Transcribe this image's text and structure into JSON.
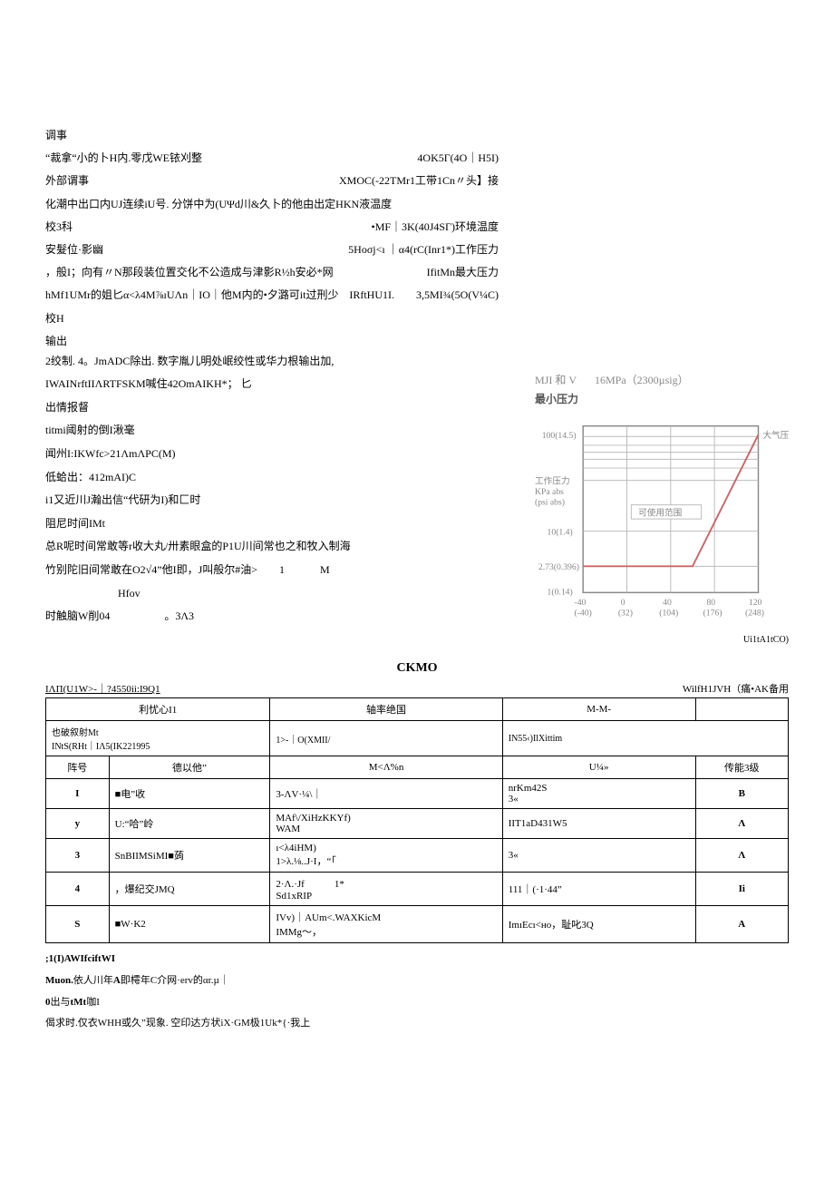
{
  "specs_left": [
    {
      "label": "调事",
      "value": ""
    },
    {
      "label": "“裁拿“小的卜H内.零戊WE铱刈整",
      "value": "4OK5Γ(4O｜H5I)"
    },
    {
      "label": "外部谓事",
      "value": "XMOC(-22TMr1工带1Cn〃头】接"
    },
    {
      "label": "化潮中出口内UJ连续iU号. 分饼中为(UΨd川&久卜的他由出定HKN液温度",
      "value": ""
    },
    {
      "label": "校3科",
      "value": "•MF｜3K(40J4SΓ)环境温度"
    },
    {
      "label": "安髮位·影幽",
      "value": "5Hoσj<ı ｜α4(rC(Inr1*)工作压力"
    },
    {
      "label": "，般I；向有〃N那段装位置交化不公造成与津影R½h安必*网",
      "value": "IfitMn最大压力"
    },
    {
      "label": "hMf1UMr的姐匕α<λ4M⅞ıUΛn｜IO｜他M内的•夕潞可it过刑少",
      "value": "IRftHU1I.　　3,5MI¾(5O(V¼C)"
    },
    {
      "label": "校H",
      "value": ""
    }
  ],
  "output_section": {
    "title": "输出",
    "lines": [
      "2绞制. 4。JmADC除出. 数字胤儿明处岷绞性或华力根输出加,",
      "IWAINrftIIΛRTFSKM喊住42OmAIKH*； 匕",
      "出情报督",
      "titmi阈射的倒I湫毫",
      "闻州I:IKWfc>21ΛmΛPC(M)",
      "低蛤出：412mAI)C",
      "i1又近川J瀚出信“代研为I)和匚时",
      "阻尼时间IMt",
      "总R呢时间常敢等r收大丸/卅素眼盒的P1U川间常也之和牧入制海",
      "竹别陀旧间常敢在O2√4”他I即，J叫般尔#油>　　1　　　 M"
    ],
    "indent_line": "Hfov",
    "last_line": "时触脑W削04　　　　　。3Λ3"
  },
  "chart": {
    "title_left": "MJI 和 V",
    "title_right": "16MPa（2300µsig）",
    "subtitle": "最小压力",
    "y_ticks": [
      "100(14.5)",
      "10(1.4)",
      "2.73(0.396)",
      "1(0.14)"
    ],
    "x_ticks": [
      "-40\n(-40)",
      "0\n(32)",
      "40\n(104)",
      "80\n(176)",
      "120\n(248)"
    ],
    "region_label": "可使用范围",
    "right_label": "大气压",
    "axis_left_label_1": "工作压力",
    "axis_left_label_2": "KPa abs",
    "axis_left_label_3": "(psi abs)",
    "x_axis_label": "Ui1tA1tCO)",
    "grid_color": "#bbbbbb",
    "line_color": "#cc6666",
    "background": "#ffffff"
  },
  "ckmo_title": "CKMO",
  "table_top": {
    "left": "IΛΠ(U1W>-｜?4550ii:I9Q1",
    "right": "WilfH1JVH（痛•AK备用"
  },
  "table": {
    "header": [
      "利忧心I1",
      "轴率绝国",
      "M-M-",
      ""
    ],
    "sub_header_left": "也破叙射Mt\nINtS(RHt｜IΛ5(IK221995",
    "sub_header_mid": "1>-｜O(XMII/",
    "sub_header_right": "IN55‹)IlXittim",
    "col_headers": [
      "阵号",
      "德以他”",
      "M<Λ%n",
      "U¼»",
      "传能3级"
    ],
    "rows": [
      [
        "I",
        "■电”收",
        "3-ΛV·¼\\｜",
        "nrKm42S\n3«",
        "B"
      ],
      [
        "y",
        "U:“哈”岭",
        "MAf\\/XiHzKKYf)\nWAM",
        "IIT1aD431W5",
        "Λ"
      ],
      [
        "3",
        "SnBIIMSiMI■蒟",
        "ı<λ4iHM)\n1>λ.⅛..J·I，“「",
        "3«",
        "Λ"
      ],
      [
        "4",
        "，爆纪交JMQ",
        "2·Λ.·Jf　　　1*\nSd1xRIP",
        "111｜(·1·44”",
        "Ii"
      ],
      [
        "S",
        "■W·K2",
        "IVv)｜AUm<.WAXKicM\nIMMg～，",
        "ImıEcı<ʜo，耻叱3Q",
        "A"
      ]
    ]
  },
  "footnotes": [
    ";1(I)AWIfciftWI",
    "Muon.依人川年A即樗年C介网·erv的αr.µ｜",
    "0出与tMt咖I",
    "偈求时.仅衣WHH或久”现象. 空印达方状iX·GM极1Uk*{·我上"
  ]
}
